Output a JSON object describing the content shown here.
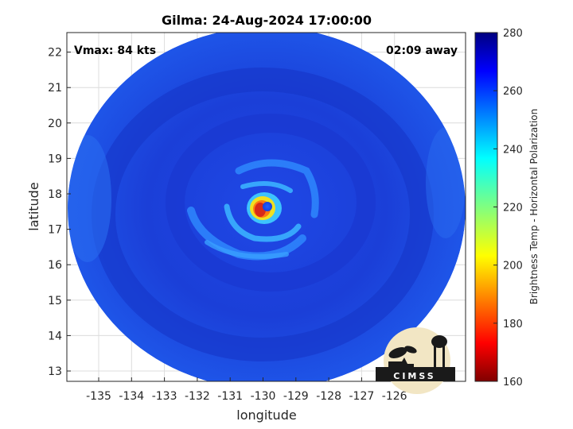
{
  "title": "Gilma: 24-Aug-2024 17:00:00",
  "vmax_label": "Vmax: 84 kts",
  "time_away_label": "02:09 away",
  "xlabel": "longitude",
  "ylabel": "latitude",
  "x_ticks": [
    "-135",
    "-134",
    "-133",
    "-132",
    "-131",
    "-130",
    "-129",
    "-128",
    "-127",
    "-126"
  ],
  "y_ticks": [
    "13",
    "14",
    "15",
    "16",
    "17",
    "18",
    "19",
    "20",
    "21",
    "22"
  ],
  "colorbar": {
    "label": "Brightness Temp - Horizontal Polarization",
    "ticks": [
      "160",
      "180",
      "200",
      "220",
      "240",
      "260",
      "280"
    ],
    "colormap": "jet",
    "range": [
      160,
      280
    ]
  },
  "logo_text": "CIMSS",
  "colors": {
    "background_cold": "#1a3fd6",
    "eye": "#1a5cff",
    "eyewall_warm": "#d62a1a"
  }
}
